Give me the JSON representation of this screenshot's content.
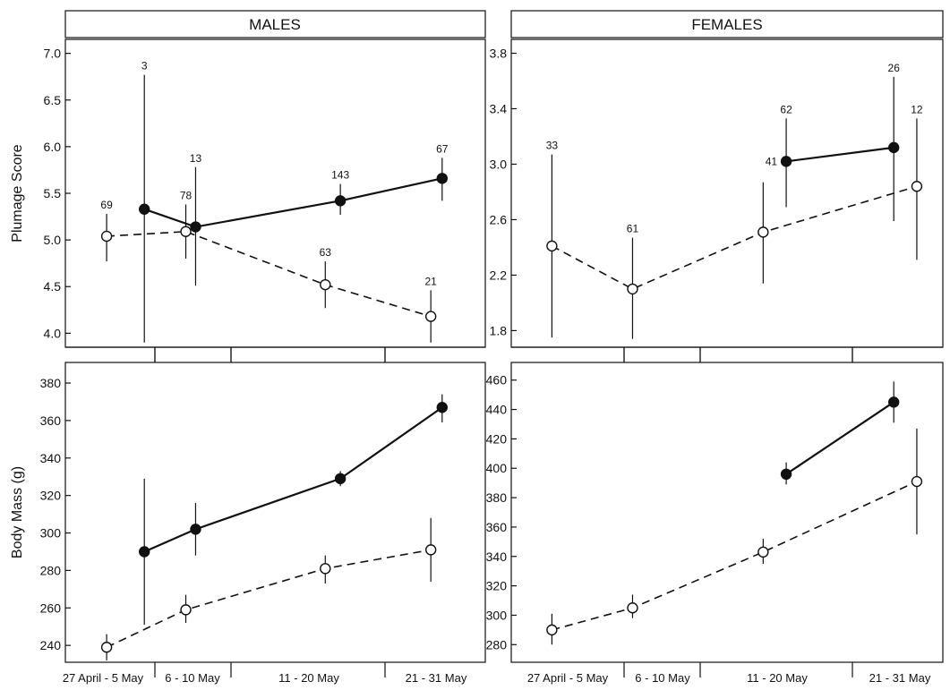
{
  "figure": {
    "headers": [
      "MALES",
      "FEMALES"
    ]
  },
  "chart_data": [
    {
      "id": "males-plumage",
      "type": "line",
      "column": "MALES",
      "ylabel": "Plumage Score",
      "ylim": [
        3.85,
        7.15
      ],
      "yticks": [
        "4.0",
        "4.5",
        "5.0",
        "5.5",
        "6.0",
        "6.5",
        "7.0"
      ],
      "ytick_values": [
        4.0,
        4.5,
        5.0,
        5.5,
        6.0,
        6.5,
        7.0
      ],
      "categories": [
        "27 April - 5 May",
        "6 - 10 May",
        "11 - 20 May",
        "21 - 31 May"
      ],
      "series": [
        {
          "style": "filled-solid",
          "color": "#111111",
          "x": [
            0.05,
            0.73,
            2.65,
            4.0
          ],
          "y": [
            5.33,
            5.14,
            5.42,
            5.66
          ],
          "err_low": [
            3.9,
            4.51,
            5.27,
            5.42
          ],
          "err_high": [
            6.77,
            5.78,
            5.6,
            5.88
          ],
          "n": [
            "3",
            "13",
            "143",
            "67"
          ]
        },
        {
          "style": "open-dashed",
          "color": "#111111",
          "x": [
            -0.45,
            0.6,
            2.45,
            3.85
          ],
          "y": [
            5.04,
            5.09,
            4.52,
            4.18
          ],
          "err_low": [
            4.77,
            4.8,
            4.27,
            3.9
          ],
          "err_high": [
            5.28,
            5.38,
            4.77,
            4.46
          ],
          "n": [
            "69",
            "78",
            "63",
            "21"
          ]
        }
      ]
    },
    {
      "id": "females-plumage",
      "type": "line",
      "column": "FEMALES",
      "ylabel": "",
      "ylim": [
        1.68,
        3.9
      ],
      "yticks": [
        "1.8",
        "2.2",
        "2.6",
        "3.0",
        "3.4",
        "3.8"
      ],
      "ytick_values": [
        1.8,
        2.2,
        2.6,
        3.0,
        3.4,
        3.8
      ],
      "categories": [
        "27 April - 5 May",
        "6 - 10 May",
        "11 - 20 May",
        "21 - 31 May"
      ],
      "series": [
        {
          "style": "filled-solid",
          "color": "#111111",
          "x": [
            2.6,
            4.0
          ],
          "y": [
            3.02,
            3.12
          ],
          "err_low": [
            2.69,
            2.59
          ],
          "err_high": [
            3.33,
            3.63
          ],
          "n": [
            "62",
            "26"
          ]
        },
        {
          "style": "open-dashed",
          "color": "#111111",
          "x": [
            -0.45,
            0.6,
            2.3,
            4.3
          ],
          "y": [
            2.41,
            2.1,
            2.51,
            2.84
          ],
          "err_low": [
            1.75,
            1.74,
            2.14,
            2.31
          ],
          "err_high": [
            3.07,
            2.47,
            2.87,
            3.33
          ],
          "n": [
            "33",
            "61",
            "41",
            "12"
          ]
        }
      ]
    },
    {
      "id": "males-mass",
      "type": "line",
      "column": "MALES",
      "ylabel": "Body Mass (g)",
      "ylim": [
        231,
        391
      ],
      "yticks": [
        "240",
        "260",
        "280",
        "300",
        "320",
        "340",
        "360",
        "380"
      ],
      "ytick_values": [
        240,
        260,
        280,
        300,
        320,
        340,
        360,
        380
      ],
      "xticklabels": [
        "27 April - 5 May",
        "6 - 10 May",
        "11 - 20 May",
        "21 - 31 May"
      ],
      "categories": [
        "27 April - 5 May",
        "6 - 10 May",
        "11 - 20 May",
        "21 - 31 May"
      ],
      "series": [
        {
          "style": "filled-solid",
          "color": "#111111",
          "x": [
            0.05,
            0.73,
            2.65,
            4.0
          ],
          "y": [
            290,
            302,
            329,
            367
          ],
          "err_low": [
            251,
            288,
            325,
            359
          ],
          "err_high": [
            329,
            316,
            333,
            374
          ],
          "n": []
        },
        {
          "style": "open-dashed",
          "color": "#111111",
          "x": [
            -0.45,
            0.6,
            2.45,
            3.85
          ],
          "y": [
            239,
            259,
            281,
            291
          ],
          "err_low": [
            232,
            252,
            273,
            274
          ],
          "err_high": [
            246,
            267,
            288,
            308
          ],
          "n": []
        }
      ]
    },
    {
      "id": "females-mass",
      "type": "line",
      "column": "FEMALES",
      "ylabel": "",
      "ylim": [
        268,
        472
      ],
      "yticks": [
        "280",
        "300",
        "320",
        "340",
        "360",
        "380",
        "400",
        "420",
        "440",
        "460"
      ],
      "ytick_values": [
        280,
        300,
        320,
        340,
        360,
        380,
        400,
        420,
        440,
        460
      ],
      "xticklabels": [
        "27 April - 5 May",
        "6 - 10 May",
        "11 - 20 May",
        "21 - 31 May"
      ],
      "categories": [
        "27 April - 5 May",
        "6 - 10 May",
        "11 - 20 May",
        "21 - 31 May"
      ],
      "series": [
        {
          "style": "filled-solid",
          "color": "#111111",
          "x": [
            2.6,
            4.0
          ],
          "y": [
            396,
            445
          ],
          "err_low": [
            389,
            431
          ],
          "err_high": [
            404,
            459
          ],
          "n": []
        },
        {
          "style": "open-dashed",
          "color": "#111111",
          "x": [
            -0.45,
            0.6,
            2.3,
            4.3
          ],
          "y": [
            290,
            305,
            343,
            391
          ],
          "err_low": [
            280,
            298,
            335,
            355
          ],
          "err_high": [
            301,
            314,
            352,
            427
          ],
          "n": []
        }
      ]
    }
  ]
}
